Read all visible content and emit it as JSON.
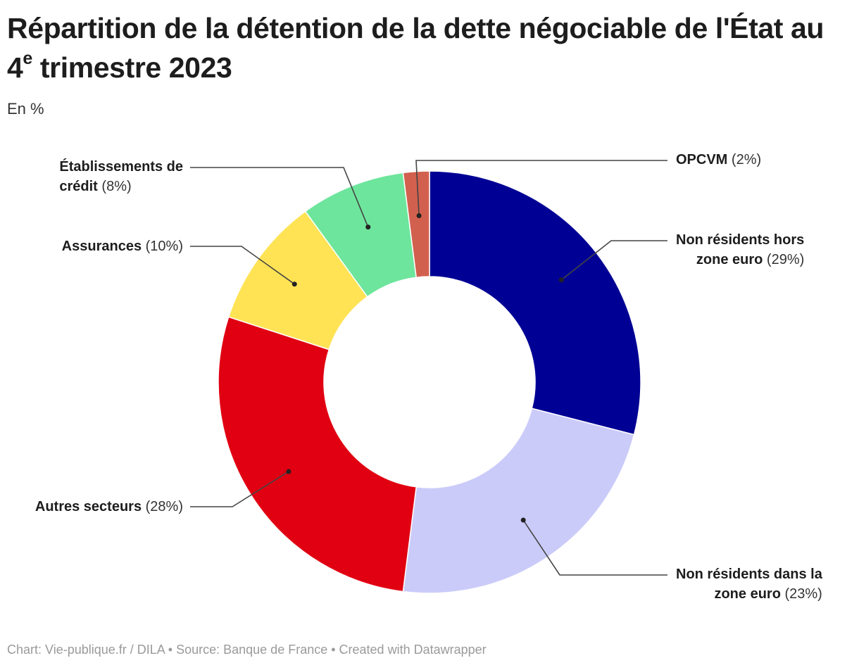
{
  "title": {
    "main": "Répartition de la détention de la dette négociable de l'État au 4",
    "superscript": "e",
    "tail": " trimestre 2023"
  },
  "subtitle": "En %",
  "footer": "Chart: Vie-publique.fr / DILA • Source: Banque de France • Created with Datawrapper",
  "chart_data": {
    "type": "pie",
    "variant": "donut",
    "title": "Répartition de la détention de la dette négociable de l'État au 4e trimestre 2023",
    "subtitle": "En %",
    "unit": "%",
    "series": [
      {
        "name": "Non résidents hors zone euro",
        "value": 29,
        "label_pct": "(29%)",
        "color": "#000094",
        "label_lines": [
          "Non résidents hors",
          "zone euro"
        ]
      },
      {
        "name": "Non résidents dans la zone euro",
        "value": 23,
        "label_pct": "(23%)",
        "color": "#cbcbfa",
        "label_lines": [
          "Non résidents dans la",
          "zone euro"
        ]
      },
      {
        "name": "Autres secteurs",
        "value": 28,
        "label_pct": "(28%)",
        "color": "#e00012",
        "label_lines": [
          "Autres secteurs"
        ]
      },
      {
        "name": "Assurances",
        "value": 10,
        "label_pct": "(10%)",
        "color": "#ffe355",
        "label_lines": [
          "Assurances"
        ]
      },
      {
        "name": "Établissements de crédit",
        "value": 8,
        "label_pct": "(8%)",
        "color": "#6ee59c",
        "label_lines": [
          "Établissements de",
          "crédit"
        ]
      },
      {
        "name": "OPCVM",
        "value": 2,
        "label_pct": "(2%)",
        "color": "#d2604e",
        "label_lines": [
          "OPCVM"
        ]
      }
    ],
    "legend": "none",
    "labels": "outside with leader lines"
  }
}
